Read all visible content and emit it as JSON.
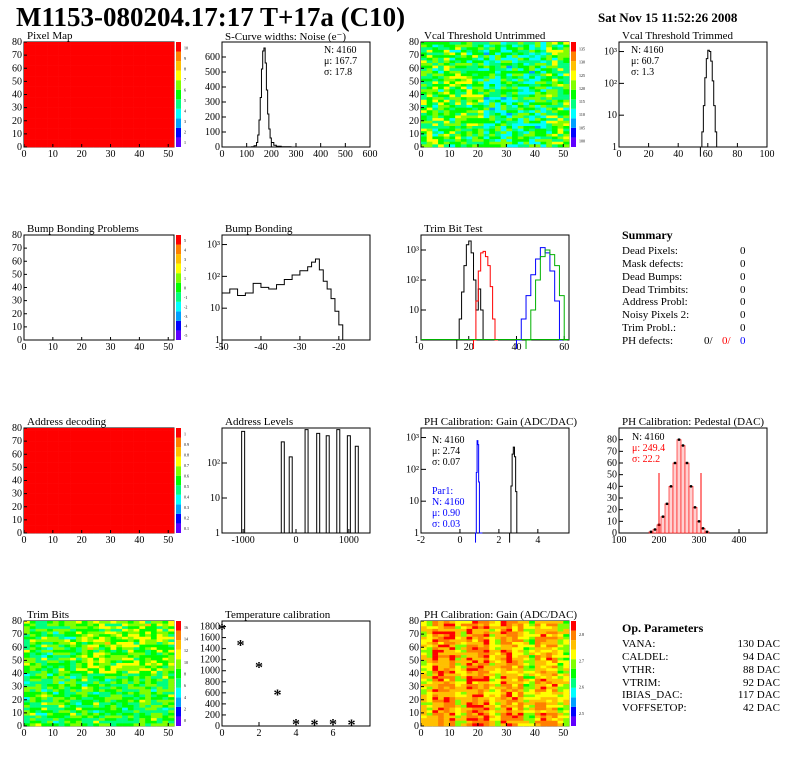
{
  "header": {
    "title": "M1153-080204.17:17 T+17a (C10)",
    "date": "Sat Nov 15 11:52:26 2008"
  },
  "colors": {
    "red": "#ff0000",
    "blue": "#0000ff",
    "green": "#00b000",
    "black": "#000000",
    "palette": [
      "#6000ff",
      "#0000ff",
      "#00a0ff",
      "#00ffff",
      "#00ff80",
      "#00ff00",
      "#80ff00",
      "#ffff00",
      "#ffc000",
      "#ff8000",
      "#ff0000"
    ]
  },
  "panels": {
    "pixel_map": {
      "title": "Pixel Map"
    },
    "scurve": {
      "title": "S-Curve widths: Noise (e⁻)",
      "stats": [
        "N: 4160",
        "μ: 167.7",
        "σ: 17.8"
      ]
    },
    "vcal_untrimmed": {
      "title": "Vcal Threshold Untrimmed"
    },
    "vcal_trimmed": {
      "title": "Vcal Threshold Trimmed",
      "stats": [
        "N: 4160",
        "μ: 60.7",
        "σ: 1.3"
      ]
    },
    "bump_problems": {
      "title": "Bump Bonding Problems"
    },
    "bump_bonding": {
      "title": "Bump Bonding"
    },
    "trim_bit_test": {
      "title": "Trim Bit Test"
    },
    "address_decoding": {
      "title": "Address decoding"
    },
    "address_levels": {
      "title": "Address Levels"
    },
    "ph_gain": {
      "title": "PH Calibration: Gain (ADC/DAC)",
      "stats": [
        "N: 4160",
        "μ: 2.74",
        "σ: 0.07"
      ],
      "par1_stats": [
        "Par1:",
        "N: 4160",
        "μ: 0.90",
        "σ: 0.03"
      ]
    },
    "ph_pedestal": {
      "title": "PH Calibration: Pedestal (DAC)",
      "stats": [
        "N: 4160",
        "μ: 249.4",
        "σ: 22.2"
      ]
    },
    "trim_bits": {
      "title": "Trim Bits"
    },
    "temperature": {
      "title": "Temperature calibration"
    },
    "ph_gain_map": {
      "title": "PH Calibration: Gain (ADC/DAC)"
    }
  },
  "summary": {
    "title": "Summary",
    "rows": [
      {
        "label": "Dead Pixels:",
        "value": "0"
      },
      {
        "label": "Mask defects:",
        "value": "0"
      },
      {
        "label": "Dead Bumps:",
        "value": "0"
      },
      {
        "label": "Dead Trimbits:",
        "value": "0"
      },
      {
        "label": "Address Probl:",
        "value": "0"
      },
      {
        "label": "Noisy Pixels 2:",
        "value": "0"
      },
      {
        "label": "Trim Probl.:",
        "value": "0"
      }
    ],
    "ph_defects": {
      "label": "PH defects:",
      "values": [
        "0/",
        "0/",
        "0"
      ]
    }
  },
  "op_parameters": {
    "title": "Op. Parameters",
    "rows": [
      {
        "label": "VANA:",
        "value": "130 DAC"
      },
      {
        "label": "CALDEL:",
        "value": "94 DAC"
      },
      {
        "label": "VTHR:",
        "value": "88 DAC"
      },
      {
        "label": "VTRIM:",
        "value": "92 DAC"
      },
      {
        "label": "IBIAS_DAC:",
        "value": "117 DAC"
      },
      {
        "label": "VOFFSETOP:",
        "value": "42 DAC"
      }
    ]
  },
  "chart_data": [
    {
      "id": "pixel_map",
      "type": "heatmap",
      "title": "Pixel Map",
      "x_ticks": [
        0,
        10,
        20,
        30,
        40,
        50
      ],
      "y_ticks": [
        0,
        10,
        20,
        30,
        40,
        50,
        60,
        70,
        80
      ],
      "fill": "uniform red (all pixels alive)",
      "z_ticks": [
        1,
        2,
        3,
        4,
        5,
        6,
        7,
        8,
        9,
        10
      ]
    },
    {
      "id": "scurve",
      "type": "line",
      "title": "S-Curve widths: Noise (e⁻)",
      "x_ticks": [
        0,
        100,
        200,
        300,
        400,
        500,
        600
      ],
      "y_ticks": [
        0,
        100,
        200,
        300,
        400,
        500,
        600
      ],
      "xlim": [
        0,
        600
      ],
      "ylim": [
        0,
        700
      ],
      "x": [
        100,
        120,
        130,
        140,
        145,
        150,
        155,
        160,
        165,
        170,
        175,
        180,
        185,
        190,
        195,
        200,
        210,
        220,
        240,
        280
      ],
      "values": [
        0,
        2,
        8,
        30,
        80,
        180,
        330,
        520,
        640,
        660,
        560,
        380,
        220,
        120,
        60,
        30,
        12,
        5,
        2,
        0
      ]
    },
    {
      "id": "vcal_untrimmed",
      "type": "heatmap",
      "title": "Vcal Threshold Untrimmed",
      "x_ticks": [
        0,
        10,
        20,
        30,
        40,
        50
      ],
      "y_ticks": [
        0,
        10,
        20,
        30,
        40,
        50,
        60,
        70,
        80
      ],
      "z_ticks": [
        100,
        105,
        110,
        115,
        120,
        125,
        130,
        135
      ]
    },
    {
      "id": "vcal_trimmed",
      "type": "line",
      "title": "Vcal Threshold Trimmed",
      "log_y": true,
      "x_ticks": [
        0,
        20,
        40,
        60,
        80,
        100
      ],
      "y_ticks": [
        1,
        10,
        100,
        1000
      ],
      "x": [
        55,
        56,
        57,
        58,
        59,
        60,
        61,
        62,
        63,
        64,
        65,
        66,
        67
      ],
      "values": [
        1,
        3,
        20,
        150,
        600,
        1100,
        1000,
        500,
        120,
        20,
        3,
        1,
        1
      ]
    },
    {
      "id": "bump_problems",
      "type": "heatmap",
      "title": "Bump Bonding Problems",
      "x_ticks": [
        0,
        10,
        20,
        30,
        40,
        50
      ],
      "y_ticks": [
        0,
        10,
        20,
        30,
        40,
        50,
        60,
        70,
        80
      ],
      "fill": "empty",
      "z_ticks": [
        -5,
        -4,
        -3,
        -2,
        -1,
        0,
        1,
        2,
        3,
        4,
        5
      ]
    },
    {
      "id": "bump_bonding",
      "type": "line",
      "title": "Bump Bonding",
      "log_y": true,
      "x_ticks": [
        -50,
        -40,
        -30,
        -20
      ],
      "y_ticks": [
        1,
        10,
        100,
        1000
      ],
      "x": [
        -50,
        -48,
        -46,
        -44,
        -42,
        -40,
        -38,
        -36,
        -34,
        -32,
        -30,
        -28,
        -27,
        -26,
        -25,
        -24,
        -23,
        -22,
        -21,
        -20,
        -19,
        -18
      ],
      "values": [
        30,
        40,
        25,
        30,
        60,
        45,
        40,
        55,
        80,
        110,
        150,
        200,
        280,
        350,
        160,
        70,
        40,
        20,
        8,
        3,
        1,
        1
      ]
    },
    {
      "id": "trim_bit_test",
      "type": "line",
      "title": "Trim Bit Test",
      "log_y": true,
      "x_ticks": [
        0,
        20,
        40,
        60
      ],
      "y_ticks": [
        1,
        10,
        100,
        1000
      ],
      "series": [
        {
          "color": "#000000",
          "x": [
            15,
            16,
            17,
            18,
            19,
            20,
            21,
            22,
            23,
            24,
            25,
            26
          ],
          "values": [
            1,
            5,
            40,
            300,
            1500,
            2000,
            800,
            100,
            10,
            50,
            10,
            1
          ]
        },
        {
          "color": "#ff0000",
          "x": [
            22,
            23,
            24,
            25,
            26,
            27,
            28,
            29,
            30,
            31
          ],
          "values": [
            1,
            20,
            200,
            800,
            900,
            600,
            300,
            60,
            5,
            1
          ]
        },
        {
          "color": "#0000ff",
          "x": [
            40,
            42,
            44,
            46,
            48,
            50,
            52,
            54,
            56,
            58
          ],
          "values": [
            1,
            5,
            30,
            150,
            500,
            1200,
            800,
            200,
            20,
            1
          ]
        },
        {
          "color": "#00b000",
          "x": [
            44,
            46,
            48,
            50,
            52,
            54,
            56,
            58,
            60
          ],
          "values": [
            1,
            10,
            100,
            600,
            1000,
            700,
            300,
            30,
            1
          ]
        }
      ]
    },
    {
      "id": "address_decoding",
      "type": "heatmap",
      "title": "Address decoding",
      "x_ticks": [
        0,
        10,
        20,
        30,
        40,
        50
      ],
      "y_ticks": [
        0,
        10,
        20,
        30,
        40,
        50,
        60,
        70,
        80
      ],
      "fill": "uniform red",
      "z_ticks": [
        0.1,
        0.2,
        0.3,
        0.4,
        0.5,
        0.6,
        0.7,
        0.8,
        0.9,
        1
      ]
    },
    {
      "id": "address_levels",
      "type": "bar",
      "title": "Address Levels",
      "log_y": true,
      "x_ticks": [
        -1000,
        0,
        1000
      ],
      "y_ticks": [
        1,
        10,
        100
      ],
      "x": [
        -1000,
        -250,
        -100,
        200,
        420,
        600,
        800,
        1000,
        1150
      ],
      "values": [
        800,
        400,
        150,
        900,
        700,
        600,
        900,
        600,
        300
      ]
    },
    {
      "id": "ph_gain",
      "type": "line",
      "title": "PH Calibration: Gain (ADC/DAC)",
      "log_y": true,
      "x_ticks": [
        -2,
        0,
        2,
        4
      ],
      "y_ticks": [
        1,
        10,
        100,
        1000
      ],
      "series": [
        {
          "name": "Par1",
          "color": "#0000ff",
          "x": [
            0.8,
            0.84,
            0.88,
            0.92,
            0.96,
            1.0
          ],
          "values": [
            1,
            80,
            800,
            600,
            40,
            1
          ]
        },
        {
          "color": "#000000",
          "x": [
            2.55,
            2.62,
            2.68,
            2.74,
            2.8,
            2.86,
            2.92
          ],
          "values": [
            1,
            30,
            300,
            500,
            250,
            20,
            1
          ]
        }
      ]
    },
    {
      "id": "ph_pedestal",
      "type": "bar",
      "title": "PH Calibration: Pedestal (DAC)",
      "x_ticks": [
        100,
        200,
        300,
        400
      ],
      "y_ticks": [
        0,
        10,
        20,
        30,
        40,
        50,
        60,
        70,
        80
      ],
      "ylim": [
        0,
        90
      ],
      "x": [
        180,
        190,
        200,
        210,
        220,
        230,
        240,
        250,
        260,
        270,
        280,
        290,
        300,
        310,
        320
      ],
      "values": [
        1,
        3,
        7,
        14,
        25,
        40,
        60,
        80,
        75,
        60,
        40,
        22,
        10,
        4,
        1
      ]
    },
    {
      "id": "trim_bits",
      "type": "heatmap",
      "title": "Trim Bits",
      "x_ticks": [
        0,
        10,
        20,
        30,
        40,
        50
      ],
      "y_ticks": [
        0,
        10,
        20,
        30,
        40,
        50,
        60,
        70,
        80
      ],
      "z_ticks": [
        0,
        2,
        4,
        6,
        8,
        10,
        12,
        14,
        16
      ]
    },
    {
      "id": "temperature",
      "type": "scatter",
      "title": "Temperature calibration",
      "x_ticks": [
        0,
        2,
        4,
        6
      ],
      "y_ticks": [
        0,
        200,
        400,
        600,
        800,
        1000,
        1200,
        1400,
        1600,
        1800
      ],
      "ylim": [
        0,
        1900
      ],
      "x": [
        0,
        1,
        2,
        3,
        4,
        5,
        6,
        7
      ],
      "values": [
        1750,
        1460,
        1060,
        560,
        30,
        20,
        30,
        20
      ]
    },
    {
      "id": "ph_gain_map",
      "type": "heatmap",
      "title": "PH Calibration: Gain (ADC/DAC)",
      "x_ticks": [
        0,
        10,
        20,
        30,
        40,
        50
      ],
      "y_ticks": [
        0,
        10,
        20,
        30,
        40,
        50,
        60,
        70,
        80
      ],
      "z_ticks": [
        2.5,
        2.6,
        2.7,
        2.8
      ]
    }
  ]
}
